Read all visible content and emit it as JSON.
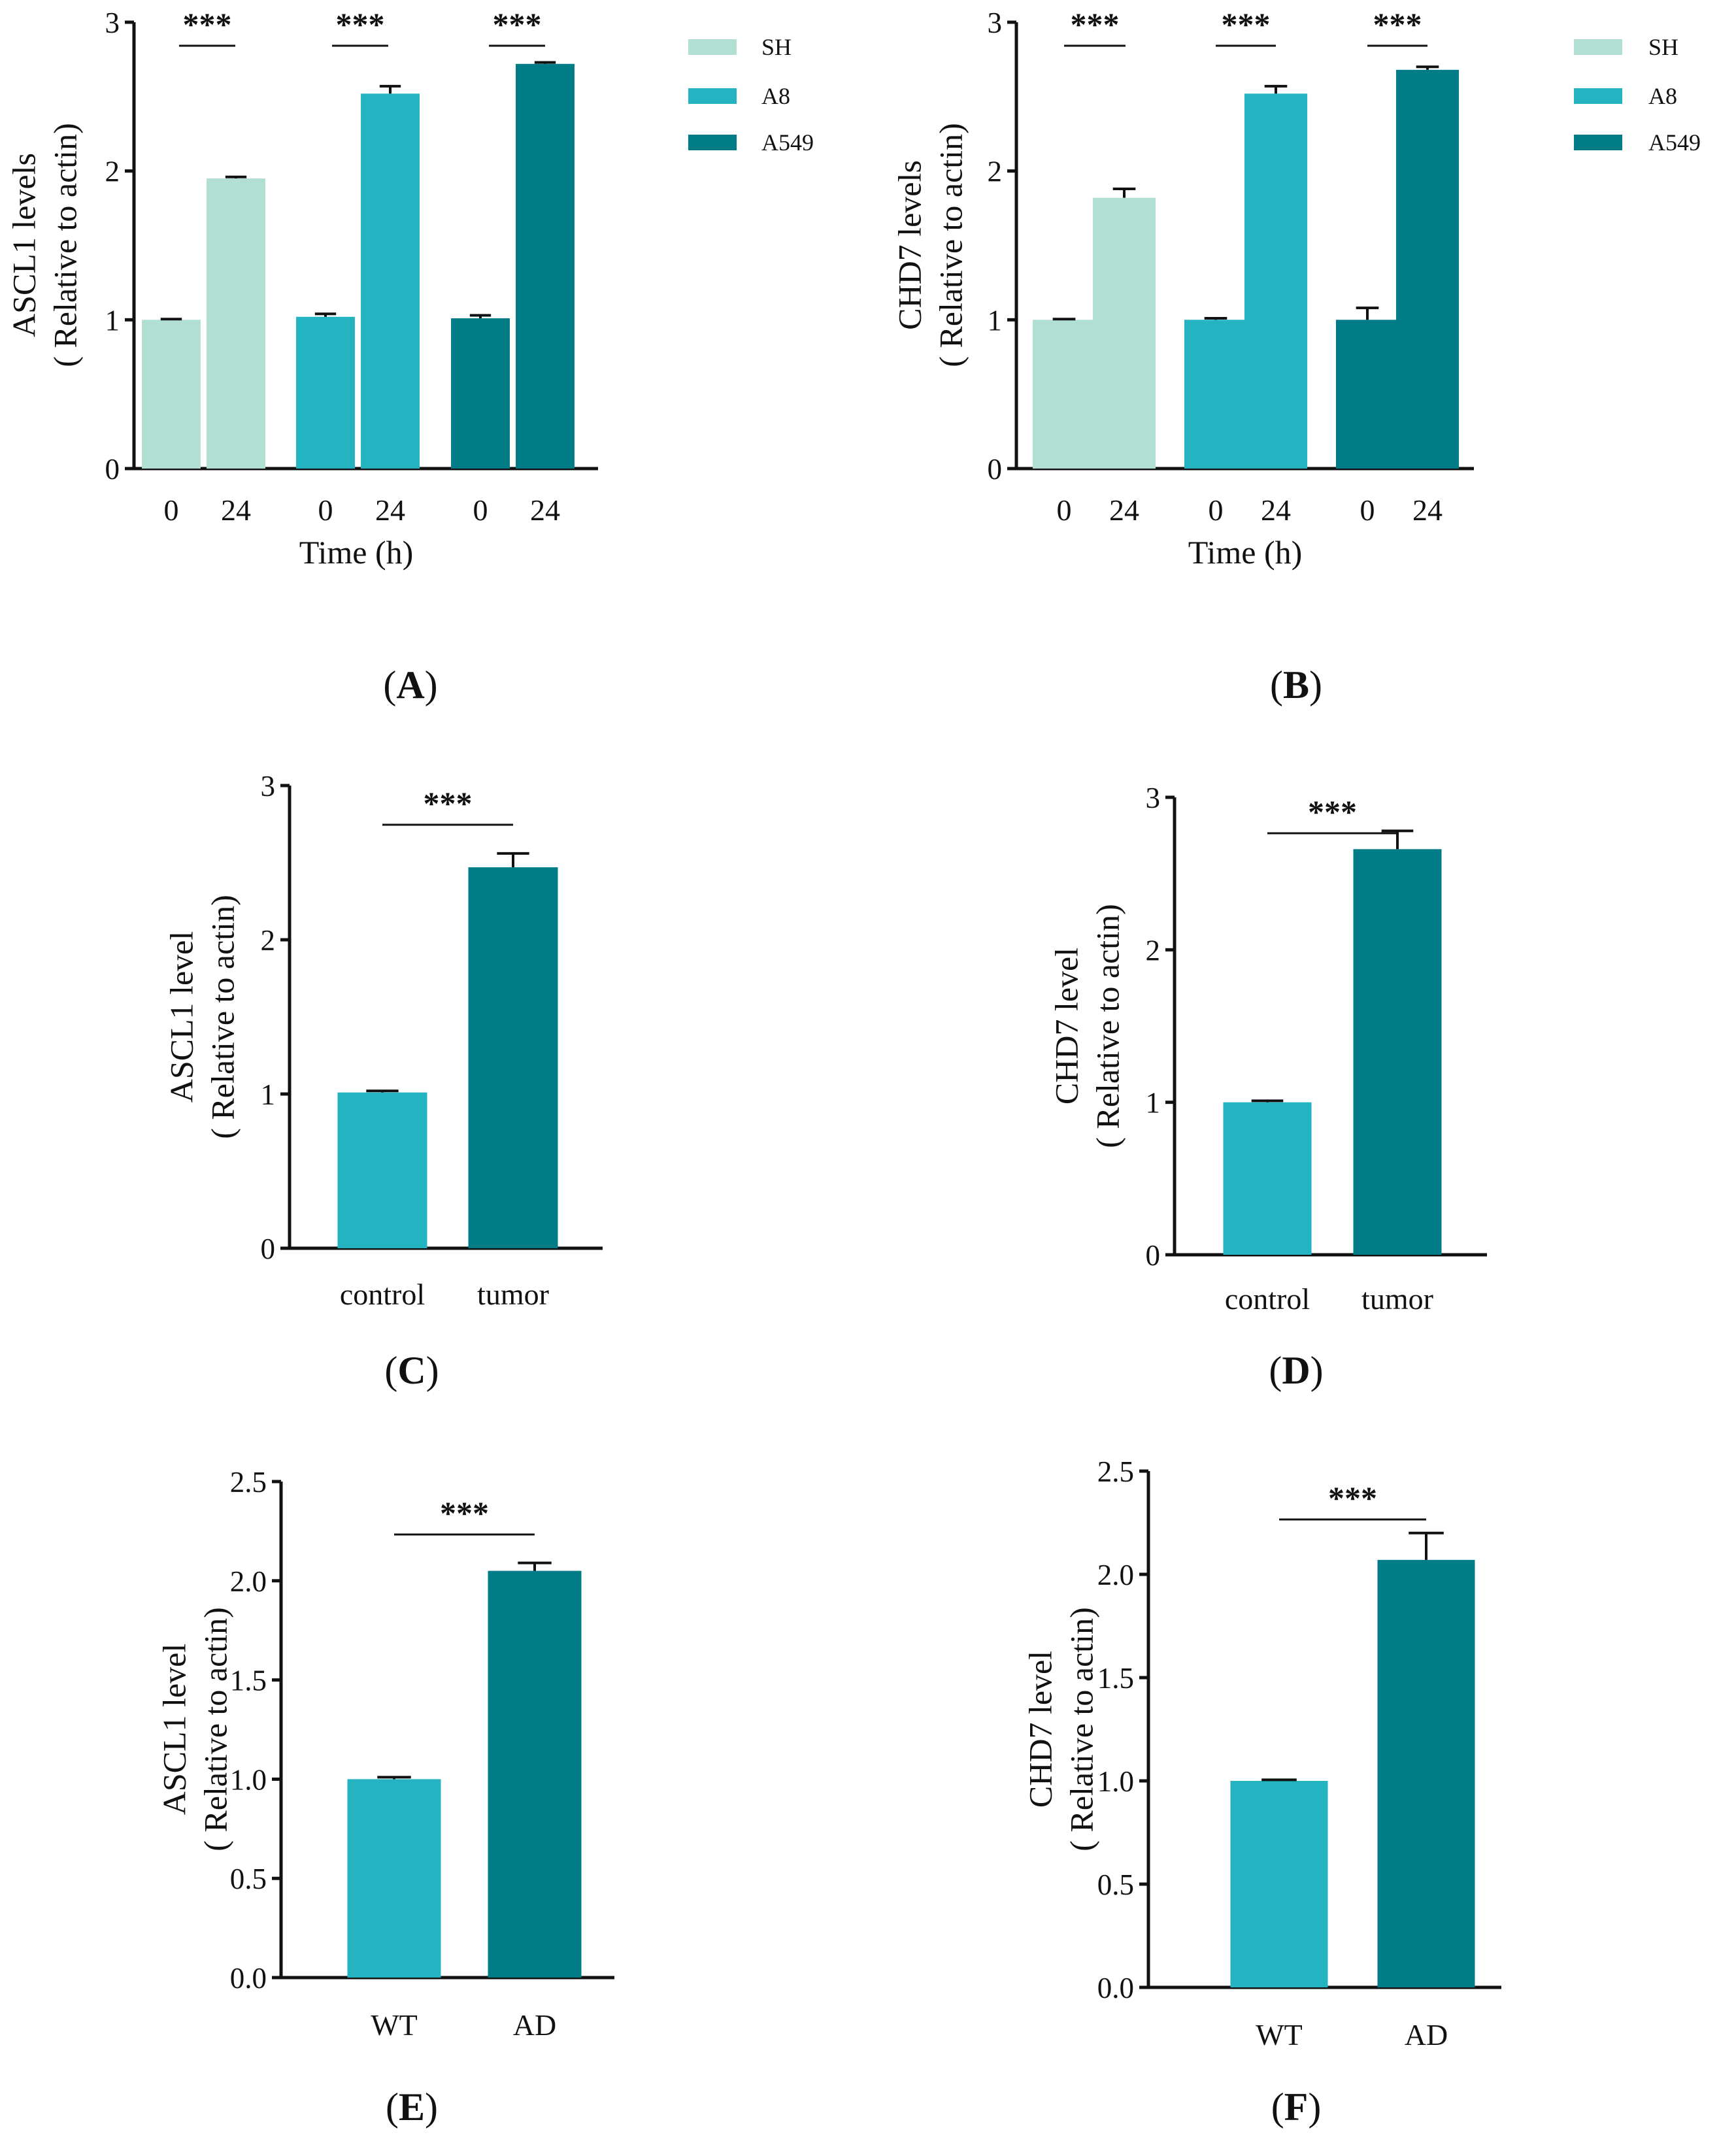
{
  "chart_data": [
    {
      "panel": "A",
      "type": "bar",
      "ylabel_line1": "ASCL1 levels",
      "ylabel_line2": "( Relative to actin)",
      "xlabel": "Time (h)",
      "ylim": [
        0,
        3
      ],
      "yticks": [
        "0",
        "1",
        "2",
        "3"
      ],
      "groups": [
        {
          "name": "SH",
          "categories": [
            "0",
            "24"
          ],
          "values": [
            1.0,
            1.95
          ],
          "errors": [
            0.005,
            0.01
          ],
          "color": "#b2dfd4",
          "significance": "***"
        },
        {
          "name": "A8",
          "categories": [
            "0",
            "24"
          ],
          "values": [
            1.02,
            2.52
          ],
          "errors": [
            0.02,
            0.05
          ],
          "color": "#23b3c1",
          "significance": "***"
        },
        {
          "name": "A549",
          "categories": [
            "0",
            "24"
          ],
          "values": [
            1.01,
            2.72
          ],
          "errors": [
            0.02,
            0.01
          ],
          "color": "#007c87",
          "significance": "***"
        }
      ],
      "legend": [
        "SH",
        "A8",
        "A549"
      ]
    },
    {
      "panel": "B",
      "type": "bar",
      "ylabel_line1": "CHD7 levels",
      "ylabel_line2": "( Relative to actin)",
      "xlabel": "Time (h)",
      "ylim": [
        0,
        3
      ],
      "yticks": [
        "0",
        "1",
        "2",
        "3"
      ],
      "groups": [
        {
          "name": "SH",
          "categories": [
            "0",
            "24"
          ],
          "values": [
            1.0,
            1.82
          ],
          "errors": [
            0.005,
            0.06
          ],
          "color": "#b2dfd4",
          "significance": "***"
        },
        {
          "name": "A8",
          "categories": [
            "0",
            "24"
          ],
          "values": [
            1.0,
            2.52
          ],
          "errors": [
            0.01,
            0.05
          ],
          "color": "#23b3c1",
          "significance": "***"
        },
        {
          "name": "A549",
          "categories": [
            "0",
            "24"
          ],
          "values": [
            1.0,
            2.68
          ],
          "errors": [
            0.08,
            0.02
          ],
          "color": "#007c87",
          "significance": "***"
        }
      ],
      "legend": [
        "SH",
        "A8",
        "A549"
      ]
    },
    {
      "panel": "C",
      "type": "bar",
      "ylabel_line1": "ASCL1 level",
      "ylabel_line2": "( Relative to actin)",
      "ylim": [
        0,
        3
      ],
      "yticks": [
        "0",
        "1",
        "2",
        "3"
      ],
      "categories": [
        "control",
        "tumor"
      ],
      "values": [
        1.01,
        2.47
      ],
      "errors": [
        0.01,
        0.09
      ],
      "colors": [
        "#23b3c1",
        "#007c87"
      ],
      "significance": "***"
    },
    {
      "panel": "D",
      "type": "bar",
      "ylabel_line1": "CHD7 level",
      "ylabel_line2": "( Relative to actin)",
      "ylim": [
        0,
        3
      ],
      "yticks": [
        "0",
        "1",
        "2",
        "3"
      ],
      "categories": [
        "control",
        "tumor"
      ],
      "values": [
        1.0,
        2.66
      ],
      "errors": [
        0.01,
        0.12
      ],
      "colors": [
        "#23b3c1",
        "#007c87"
      ],
      "significance": "***"
    },
    {
      "panel": "E",
      "type": "bar",
      "ylabel_line1": "ASCL1 level",
      "ylabel_line2": "( Relative to actin)",
      "ylim": [
        0,
        2.5
      ],
      "yticks": [
        "0.0",
        "0.5",
        "1.0",
        "1.5",
        "2.0",
        "2.5"
      ],
      "categories": [
        "WT",
        "AD"
      ],
      "values": [
        1.0,
        2.05
      ],
      "errors": [
        0.01,
        0.04
      ],
      "colors": [
        "#23b3c1",
        "#007c87"
      ],
      "significance": "***"
    },
    {
      "panel": "F",
      "type": "bar",
      "ylabel_line1": "CHD7 level",
      "ylabel_line2": "( Relative to actin)",
      "ylim": [
        0,
        2.5
      ],
      "yticks": [
        "0.0",
        "0.5",
        "1.0",
        "1.5",
        "2.0",
        "2.5"
      ],
      "categories": [
        "WT",
        "AD"
      ],
      "values": [
        1.0,
        2.07
      ],
      "errors": [
        0.005,
        0.13
      ],
      "colors": [
        "#23b3c1",
        "#007c87"
      ],
      "significance": "***"
    }
  ]
}
